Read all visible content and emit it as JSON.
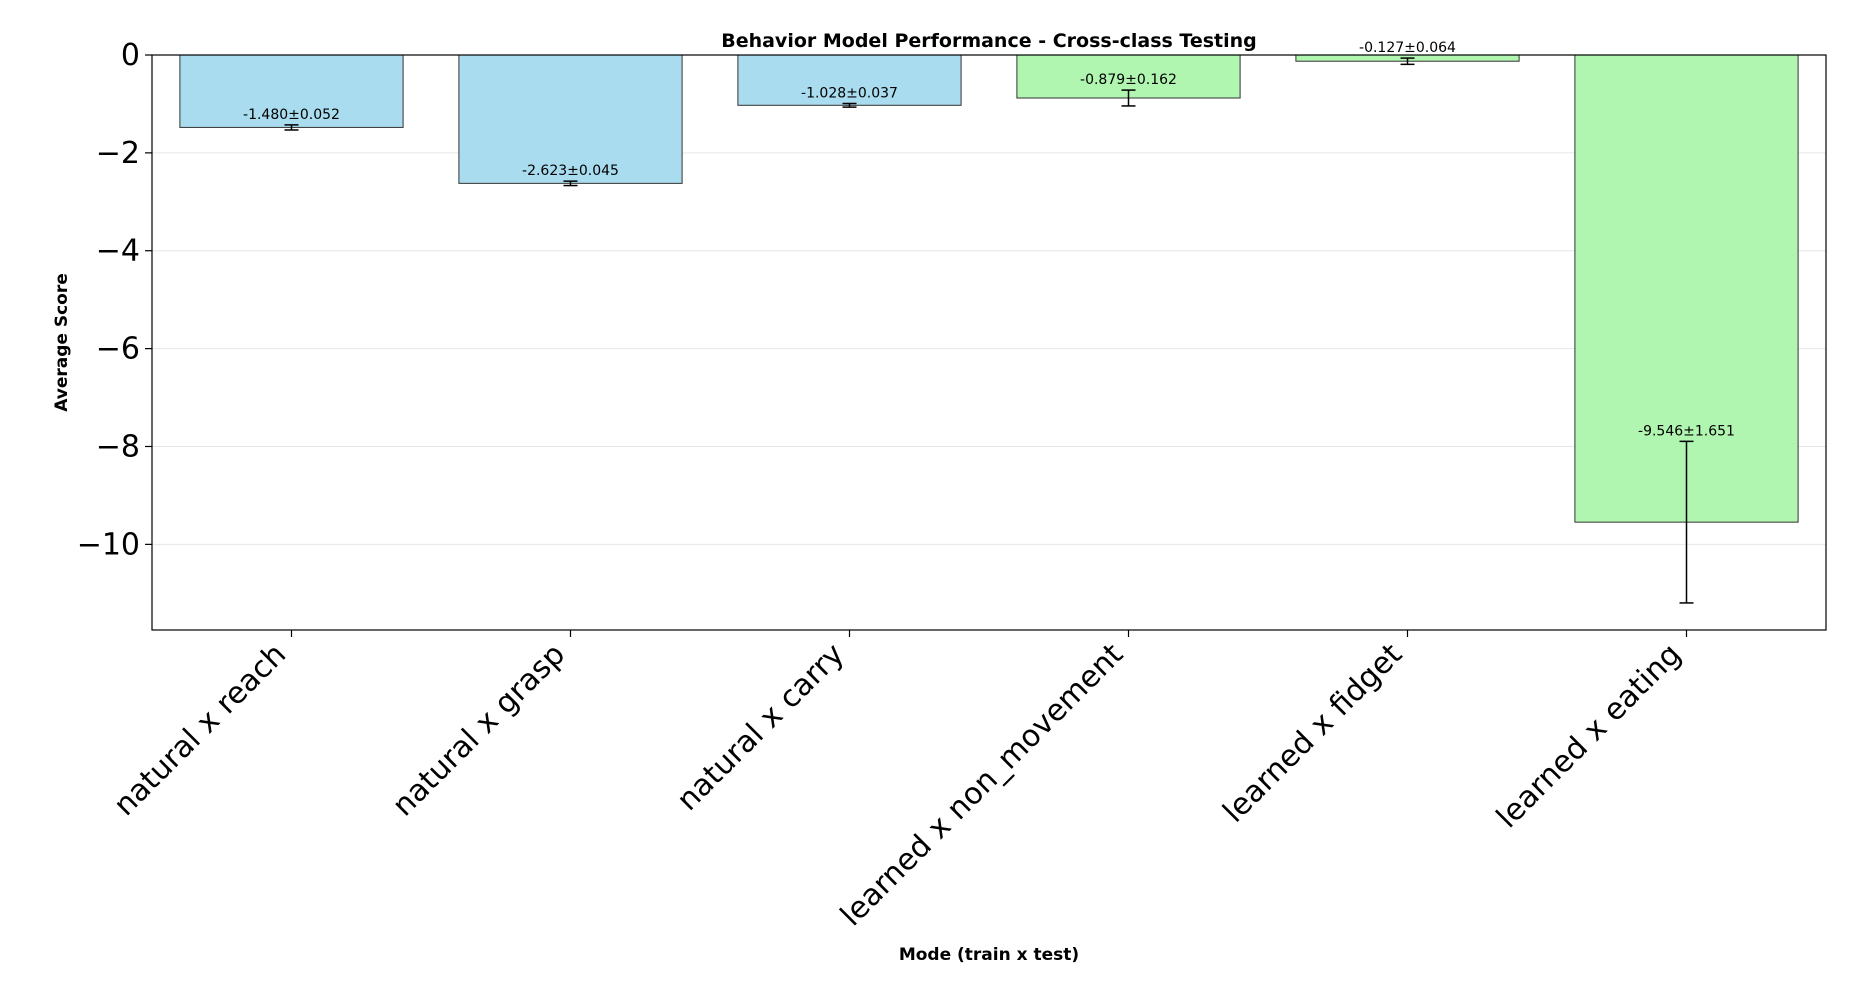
{
  "chart_data": {
    "type": "bar",
    "title": "Behavior Model Performance - Cross-class Testing",
    "xlabel": "Mode (train x test)",
    "ylabel": "Average Score",
    "ylim": [
      -11.75,
      0.0
    ],
    "yticks": [
      0,
      -2,
      -4,
      -6,
      -8,
      -10
    ],
    "ytick_labels": [
      "0",
      "−2",
      "−4",
      "−6",
      "−8",
      "−10"
    ],
    "grid": "y",
    "categories": [
      "natural x reach",
      "natural x grasp",
      "natural x carry",
      "learned x non_movement",
      "learned x fidget",
      "learned x eating"
    ],
    "values": [
      -1.48,
      -2.623,
      -1.028,
      -0.879,
      -0.127,
      -9.546
    ],
    "errors": [
      0.052,
      0.045,
      0.037,
      0.162,
      0.064,
      1.651
    ],
    "data_labels": [
      "-1.480±0.052",
      "-2.623±0.045",
      "-1.028±0.037",
      "-0.879±0.162",
      "-0.127±0.064",
      "-9.546±1.651"
    ],
    "bar_colors": [
      "#a8dcee",
      "#a8dcee",
      "#a8dcee",
      "#b0f5b0",
      "#b0f5b0",
      "#b0f5b0"
    ],
    "edge_color": "#333333",
    "grid_color": "#e6e6e6"
  }
}
